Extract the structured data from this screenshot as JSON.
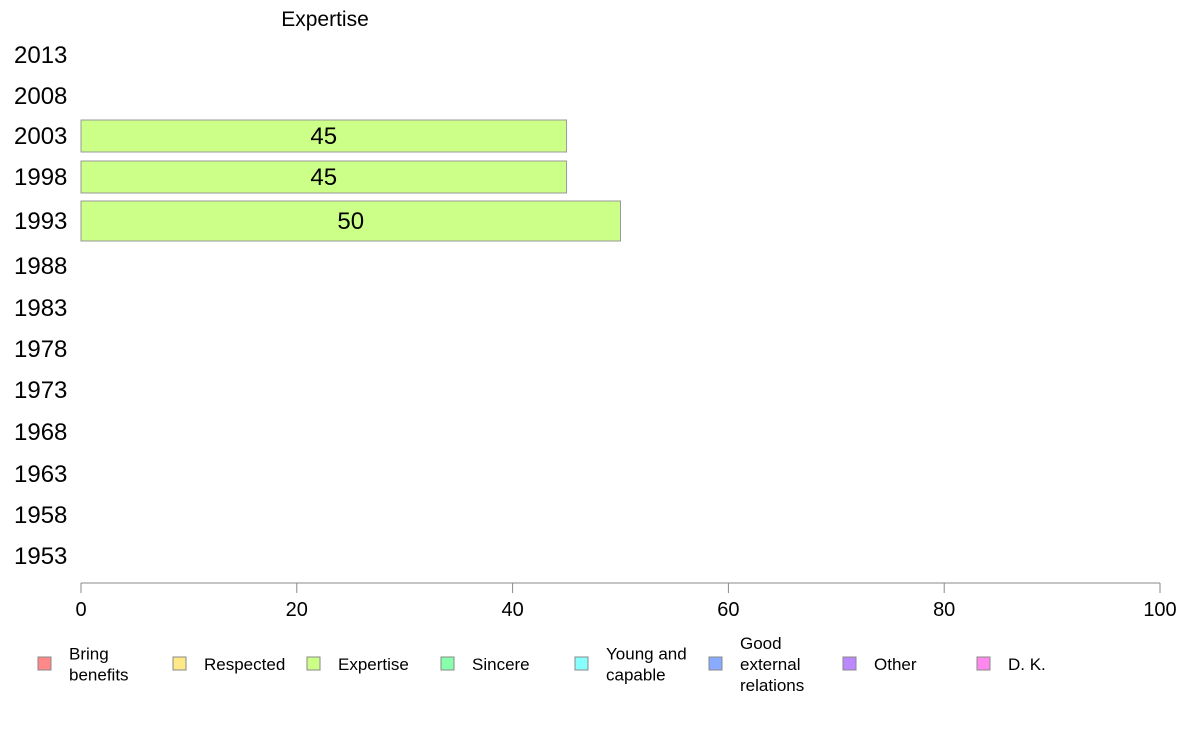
{
  "chart_data": {
    "type": "bar",
    "orientation": "horizontal",
    "title": "Expertise",
    "categories": [
      "2013",
      "2008",
      "2003",
      "1998",
      "1993",
      "1988",
      "1983",
      "1978",
      "1973",
      "1968",
      "1963",
      "1958",
      "1953"
    ],
    "series": [
      {
        "name": "Expertise",
        "color": "#ccff88",
        "values": [
          null,
          null,
          45,
          45,
          50,
          null,
          null,
          null,
          null,
          null,
          null,
          null,
          null
        ],
        "labels": [
          "",
          "",
          "45",
          "45",
          "50",
          "",
          "",
          "",
          "",
          "",
          "",
          "",
          ""
        ]
      }
    ],
    "xlim": [
      0,
      100
    ],
    "xticks": [
      "0",
      "20",
      "40",
      "60",
      "80",
      "100"
    ],
    "grid": false,
    "legend_position": "bottom",
    "legend": [
      {
        "label": "Bring benefits",
        "lines": [
          "Bring",
          "benefits"
        ],
        "color": "#ff8888"
      },
      {
        "label": "Respected",
        "lines": [
          "Respected"
        ],
        "color": "#ffe888"
      },
      {
        "label": "Expertise",
        "lines": [
          "Expertise"
        ],
        "color": "#ccff88"
      },
      {
        "label": "Sincere",
        "lines": [
          "Sincere"
        ],
        "color": "#88ffaa"
      },
      {
        "label": "Young and capable",
        "lines": [
          "Young and",
          "capable"
        ],
        "color": "#88ffff"
      },
      {
        "label": "Good external relations",
        "lines": [
          "Good",
          "external",
          "relations"
        ],
        "color": "#88aaff"
      },
      {
        "label": "Other",
        "lines": [
          "Other"
        ],
        "color": "#bb88ff"
      },
      {
        "label": "D. K.",
        "lines": [
          "D. K."
        ],
        "color": "#ff88ee"
      }
    ]
  }
}
